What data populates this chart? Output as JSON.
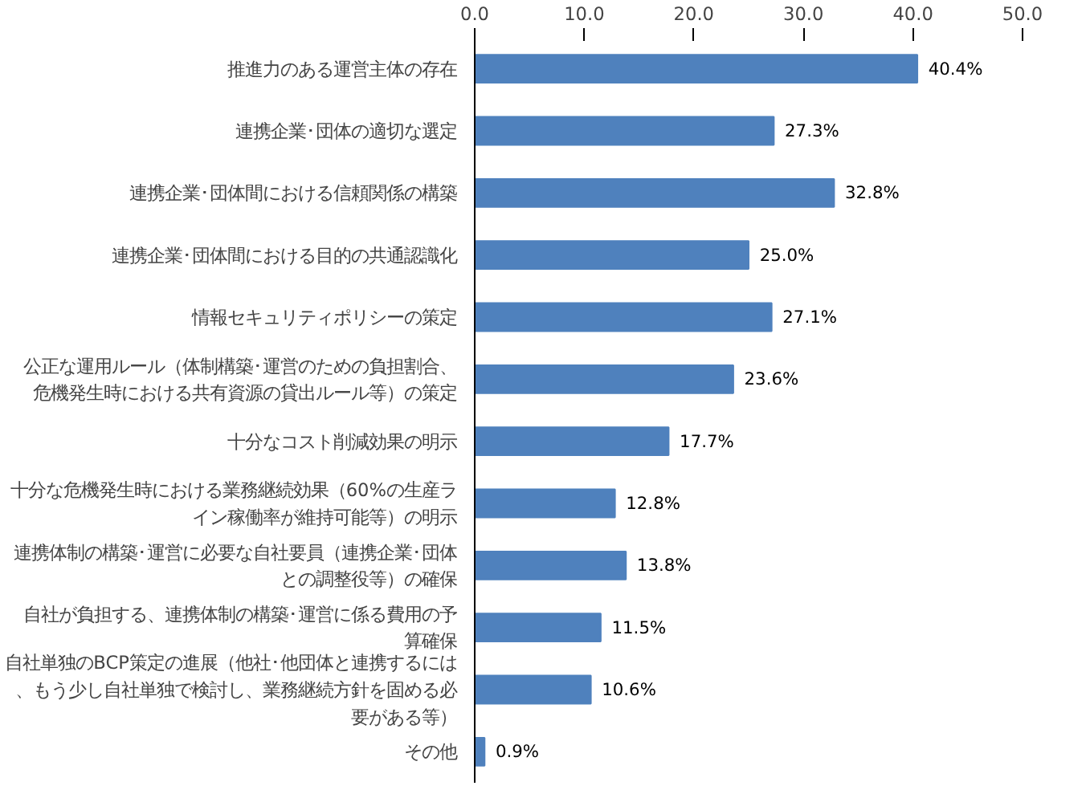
{
  "chart_data": {
    "type": "bar",
    "orientation": "horizontal",
    "categories": [
      "推進力のある運営主体の存在",
      "連携企業･団体の適切な選定",
      "連携企業･団体間における信頼関係の構築",
      "連携企業･団体間における目的の共通認識化",
      "情報セキュリティポリシーの策定",
      "公正な運用ルール（体制構築･運営のための負担割合、危機発生時における共有資源の貸出ルール等）の策定",
      "十分なコスト削減効果の明示",
      "十分な危機発生時における業務継続効果（60%の生産ライン稼働率が維持可能等）の明示",
      "連携体制の構築･運営に必要な自社要員（連携企業･団体との調整役等）の確保",
      "自社が負担する、連携体制の構築･運営に係る費用の予算確保",
      "自社単独のBCP策定の進展（他社･他団体と連携するには、もう少し自社単独で検討し、業務継続方針を固める必要がある等）",
      "その他"
    ],
    "values": [
      40.4,
      27.3,
      32.8,
      25.0,
      27.1,
      23.6,
      17.7,
      12.8,
      13.8,
      11.5,
      10.6,
      0.9
    ],
    "value_labels": [
      "40.4%",
      "27.3%",
      "32.8%",
      "25.0%",
      "27.1%",
      "23.6%",
      "17.7%",
      "12.8%",
      "13.8%",
      "11.5%",
      "10.6%",
      "0.9%"
    ],
    "color": "#4f81bd",
    "xlim": [
      0,
      50
    ],
    "xticks": [
      {
        "value": 0,
        "label": "0.0"
      },
      {
        "value": 10,
        "label": "10.0"
      },
      {
        "value": 20,
        "label": "20.0"
      },
      {
        "value": 30,
        "label": "30.0"
      },
      {
        "value": 40,
        "label": "40.0"
      },
      {
        "value": 50,
        "label": "50.0"
      }
    ],
    "grid": false,
    "legend": false
  }
}
